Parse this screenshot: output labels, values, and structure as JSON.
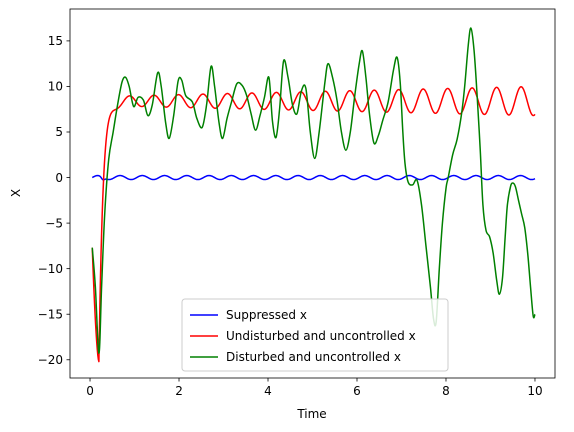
{
  "chart_data": {
    "type": "line",
    "title": "",
    "xlabel": "Time",
    "ylabel": "X",
    "xlim": [
      -0.45,
      10.45
    ],
    "ylim": [
      -22,
      18.5
    ],
    "xticks": [
      0,
      2,
      4,
      6,
      8,
      10
    ],
    "yticks": [
      -20,
      -15,
      -10,
      -5,
      0,
      5,
      10,
      15
    ],
    "grid": false,
    "legend": {
      "placement": "lower-center"
    },
    "series": [
      {
        "name": "Suppressed x",
        "color": "#0000ff",
        "model": {
          "kind": "sine",
          "t_start": 0.05,
          "t_end": 10.0,
          "offset": 0.0,
          "amplitude": 0.22,
          "period": 0.5,
          "dip": {
            "t": 0.3,
            "value": -0.25
          }
        }
      },
      {
        "name": "Undisturbed and uncontrolled x",
        "color": "#ff0000",
        "model": {
          "kind": "settle-oscillate",
          "t_start": 0.05,
          "t_end": 10.0,
          "start_value": -7.7,
          "min": {
            "t": 0.2,
            "value": -20.2
          },
          "settle": 8.4,
          "amplitude_start": 0.5,
          "amplitude_end": 1.6,
          "period": 0.55
        }
      },
      {
        "name": "Disturbed and uncontrolled x",
        "color": "#008000",
        "points": [
          [
            0.05,
            -7.7
          ],
          [
            0.12,
            -12.0
          ],
          [
            0.2,
            -19.3
          ],
          [
            0.26,
            -12.0
          ],
          [
            0.33,
            -4.0
          ],
          [
            0.42,
            2.0
          ],
          [
            0.52,
            5.0
          ],
          [
            0.62,
            8.0
          ],
          [
            0.72,
            10.5
          ],
          [
            0.8,
            11.0
          ],
          [
            0.88,
            10.0
          ],
          [
            0.98,
            7.8
          ],
          [
            1.08,
            8.8
          ],
          [
            1.2,
            8.5
          ],
          [
            1.3,
            6.8
          ],
          [
            1.4,
            8.0
          ],
          [
            1.52,
            11.5
          ],
          [
            1.6,
            10.0
          ],
          [
            1.7,
            6.0
          ],
          [
            1.78,
            4.3
          ],
          [
            1.88,
            6.8
          ],
          [
            1.98,
            10.6
          ],
          [
            2.06,
            10.7
          ],
          [
            2.15,
            9.0
          ],
          [
            2.3,
            8.3
          ],
          [
            2.4,
            6.5
          ],
          [
            2.52,
            5.5
          ],
          [
            2.62,
            8.0
          ],
          [
            2.72,
            12.2
          ],
          [
            2.8,
            10.0
          ],
          [
            2.9,
            6.0
          ],
          [
            2.98,
            4.3
          ],
          [
            3.08,
            6.5
          ],
          [
            3.18,
            8.3
          ],
          [
            3.3,
            10.3
          ],
          [
            3.42,
            10.1
          ],
          [
            3.52,
            9.0
          ],
          [
            3.62,
            7.0
          ],
          [
            3.72,
            5.2
          ],
          [
            3.82,
            6.8
          ],
          [
            3.92,
            8.8
          ],
          [
            4.02,
            11.0
          ],
          [
            4.1,
            6.2
          ],
          [
            4.18,
            4.4
          ],
          [
            4.26,
            7.5
          ],
          [
            4.35,
            12.8
          ],
          [
            4.45,
            11.0
          ],
          [
            4.55,
            8.0
          ],
          [
            4.65,
            7.0
          ],
          [
            4.75,
            9.5
          ],
          [
            4.85,
            9.8
          ],
          [
            4.95,
            5.0
          ],
          [
            5.05,
            2.1
          ],
          [
            5.15,
            5.0
          ],
          [
            5.28,
            10.5
          ],
          [
            5.35,
            12.5
          ],
          [
            5.45,
            11.0
          ],
          [
            5.55,
            8.5
          ],
          [
            5.65,
            5.0
          ],
          [
            5.75,
            3.0
          ],
          [
            5.85,
            5.0
          ],
          [
            5.95,
            9.0
          ],
          [
            6.05,
            12.5
          ],
          [
            6.12,
            13.9
          ],
          [
            6.2,
            11.0
          ],
          [
            6.28,
            7.0
          ],
          [
            6.38,
            3.8
          ],
          [
            6.48,
            4.6
          ],
          [
            6.58,
            6.3
          ],
          [
            6.7,
            8.3
          ],
          [
            6.82,
            11.8
          ],
          [
            6.9,
            13.2
          ],
          [
            6.97,
            10.5
          ],
          [
            7.03,
            5.0
          ],
          [
            7.08,
            1.5
          ],
          [
            7.15,
            -0.5
          ],
          [
            7.25,
            -0.8
          ],
          [
            7.35,
            -0.3
          ],
          [
            7.45,
            -3.0
          ],
          [
            7.55,
            -7.5
          ],
          [
            7.65,
            -12.0
          ],
          [
            7.72,
            -15.5
          ],
          [
            7.78,
            -15.8
          ],
          [
            7.85,
            -10.0
          ],
          [
            7.92,
            -5.0
          ],
          [
            8.0,
            -1.2
          ],
          [
            8.05,
            0.0
          ],
          [
            8.15,
            2.5
          ],
          [
            8.25,
            4.2
          ],
          [
            8.35,
            7.0
          ],
          [
            8.42,
            10.0
          ],
          [
            8.5,
            14.5
          ],
          [
            8.56,
            16.4
          ],
          [
            8.63,
            14.0
          ],
          [
            8.7,
            9.0
          ],
          [
            8.77,
            3.0
          ],
          [
            8.83,
            -3.0
          ],
          [
            8.9,
            -5.8
          ],
          [
            8.98,
            -6.5
          ],
          [
            9.06,
            -8.3
          ],
          [
            9.14,
            -11.3
          ],
          [
            9.2,
            -12.8
          ],
          [
            9.27,
            -11.0
          ],
          [
            9.33,
            -6.5
          ],
          [
            9.38,
            -3.0
          ],
          [
            9.45,
            -1.0
          ],
          [
            9.5,
            -0.6
          ],
          [
            9.56,
            -1.0
          ],
          [
            9.63,
            -2.5
          ],
          [
            9.7,
            -4.0
          ],
          [
            9.77,
            -5.5
          ],
          [
            9.84,
            -8.5
          ],
          [
            9.9,
            -12.0
          ],
          [
            9.96,
            -15.2
          ],
          [
            10.0,
            -15.0
          ]
        ]
      }
    ]
  }
}
